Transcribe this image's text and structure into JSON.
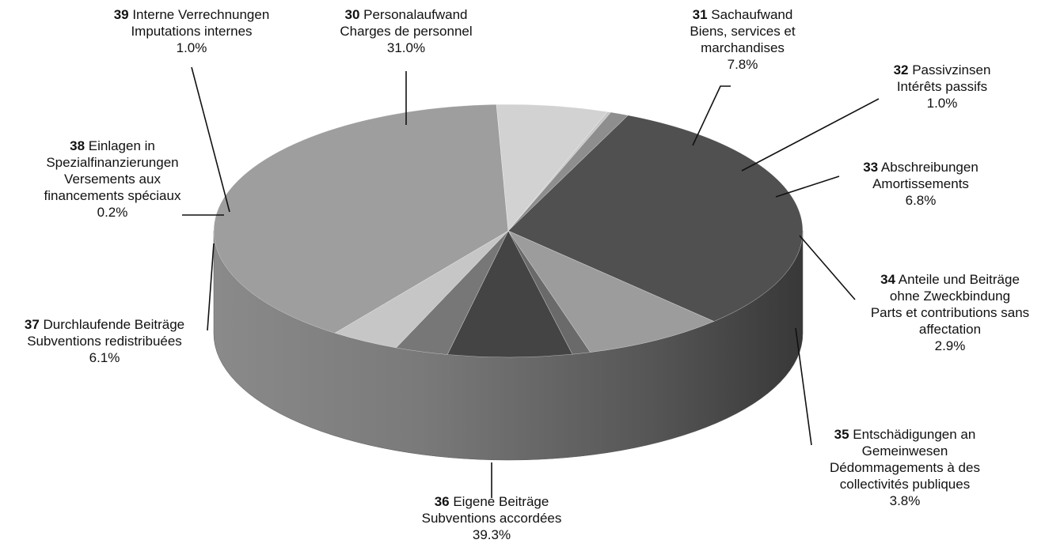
{
  "chart_data": {
    "type": "pie",
    "three_d": true,
    "legend": "none",
    "grid": false,
    "title": "",
    "unit": "%",
    "slices": [
      {
        "code": "30",
        "de": "Personalaufwand",
        "fr": "Charges de personnel",
        "value": 31.0,
        "pct_label": "31.0%",
        "color": "#505050"
      },
      {
        "code": "31",
        "de": "Sachaufwand",
        "fr": "Biens, services et marchandises",
        "value": 7.8,
        "pct_label": "7.8%",
        "color": "#9c9c9c"
      },
      {
        "code": "32",
        "de": "Passivzinsen",
        "fr": "Intérêts passifs",
        "value": 1.0,
        "pct_label": "1.0%",
        "color": "#6a6a6a"
      },
      {
        "code": "33",
        "de": "Abschreibungen",
        "fr": "Amortissements",
        "value": 6.8,
        "pct_label": "6.8%",
        "color": "#444444"
      },
      {
        "code": "34",
        "de": "Anteile und Beiträge ohne Zweckbindung",
        "fr": "Parts et contributions sans affectation",
        "value": 2.9,
        "pct_label": "2.9%",
        "color": "#777777"
      },
      {
        "code": "35",
        "de": "Entschädigungen an Gemeinwesen",
        "fr": "Dédommagements à des collectivités publiques",
        "value": 3.8,
        "pct_label": "3.8%",
        "color": "#c6c6c6"
      },
      {
        "code": "36",
        "de": "Eigene Beiträge",
        "fr": "Subventions accordées",
        "value": 39.3,
        "pct_label": "39.3%",
        "color": "#9e9e9e"
      },
      {
        "code": "37",
        "de": "Durchlaufende Beiträge",
        "fr": "Subventions redistribuées",
        "value": 6.1,
        "pct_label": "6.1%",
        "color": "#d2d2d2"
      },
      {
        "code": "38",
        "de": "Einlagen in Spezialfinanzierungen",
        "fr": "Versements aux financements spéciaux",
        "value": 0.2,
        "pct_label": "0.2%",
        "color": "#c9c9c9"
      },
      {
        "code": "39",
        "de": "Interne Verrechnungen",
        "fr": "Imputations internes",
        "value": 1.0,
        "pct_label": "1.0%",
        "color": "#8e8e8e"
      }
    ],
    "labels": [
      {
        "slice": "39",
        "lines": [
          {
            "code": "39",
            "text": "Interne Verrechnungen"
          },
          {
            "text": "Imputations internes"
          },
          {
            "text": "1.0%"
          }
        ]
      },
      {
        "slice": "30",
        "lines": [
          {
            "code": "30",
            "text": "Personalaufwand"
          },
          {
            "text": "Charges de personnel"
          },
          {
            "text": "31.0%"
          }
        ]
      },
      {
        "slice": "31",
        "lines": [
          {
            "code": "31",
            "text": "Sachaufwand"
          },
          {
            "text": "Biens, services et"
          },
          {
            "text": "marchandises"
          },
          {
            "text": "7.8%"
          }
        ]
      },
      {
        "slice": "32",
        "lines": [
          {
            "code": "32",
            "text": "Passivzinsen"
          },
          {
            "text": "Intérêts passifs"
          },
          {
            "text": "1.0%"
          }
        ]
      },
      {
        "slice": "33",
        "lines": [
          {
            "code": "33",
            "text": "Abschreibungen"
          },
          {
            "text": "Amortissements"
          },
          {
            "text": "6.8%"
          }
        ]
      },
      {
        "slice": "34",
        "lines": [
          {
            "code": "34",
            "text": "Anteile und Beiträge"
          },
          {
            "text": "ohne Zweckbindung"
          },
          {
            "text": "Parts et contributions sans"
          },
          {
            "text": "affectation"
          },
          {
            "text": "2.9%"
          }
        ]
      },
      {
        "slice": "35",
        "lines": [
          {
            "code": "35",
            "text": "Entschädigungen an"
          },
          {
            "text": "Gemeinwesen"
          },
          {
            "text": "Dédommagements à des"
          },
          {
            "text": "collectivités publiques"
          },
          {
            "text": "3.8%"
          }
        ]
      },
      {
        "slice": "36",
        "lines": [
          {
            "code": "36",
            "text": "Eigene Beiträge"
          },
          {
            "text": "Subventions accordées"
          },
          {
            "text": "39.3%"
          }
        ]
      },
      {
        "slice": "37",
        "lines": [
          {
            "code": "37",
            "text": "Durchlaufende Beiträge"
          },
          {
            "text": "Subventions redistribuées"
          },
          {
            "text": "6.1%"
          }
        ]
      },
      {
        "slice": "38",
        "lines": [
          {
            "code": "38",
            "text": "Einlagen in"
          },
          {
            "text": "Spezialfinanzierungen"
          },
          {
            "text": "Versements aux"
          },
          {
            "text": "financements spéciaux"
          },
          {
            "text": "0.2%"
          }
        ]
      }
    ]
  }
}
